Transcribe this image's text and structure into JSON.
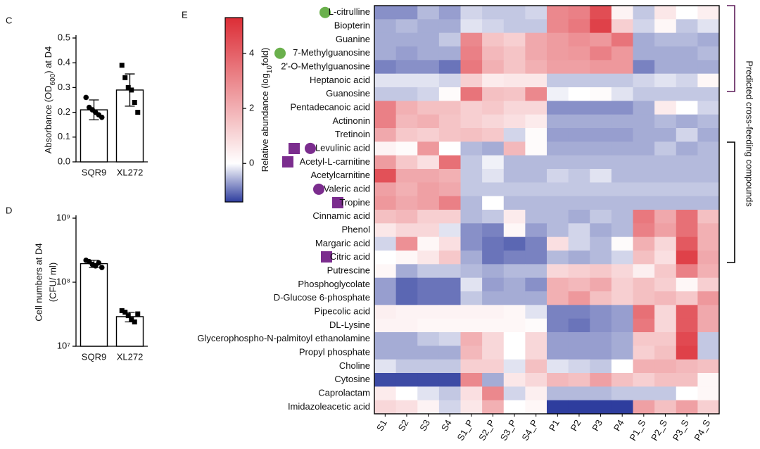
{
  "chart_data": [
    {
      "type": "bar",
      "panel": "C",
      "ylabel": [
        "Absorbance (OD",
        "600",
        ") at D4"
      ],
      "ylabel_sub": 1,
      "categories": [
        "SQR9",
        "XL272"
      ],
      "values": [
        0.21,
        0.29
      ],
      "errors": [
        0.04,
        0.065
      ],
      "points": [
        [
          0.26,
          0.22,
          0.21,
          0.2,
          0.19,
          0.18
        ],
        [
          0.39,
          0.34,
          0.3,
          0.29,
          0.24,
          0.2
        ]
      ],
      "markers": [
        "circle",
        "square"
      ],
      "color": "#ffffff",
      "ylim": [
        0,
        0.5
      ],
      "yticks": [
        {
          "value": 0,
          "label": "0.0"
        },
        0.1,
        0.2,
        0.3,
        0.4,
        0.5
      ],
      "log": false
    },
    {
      "type": "bar",
      "panel": "D",
      "ylabel_lines": [
        "Cell numbers at D4",
        "(CFU/ ml)"
      ],
      "categories": [
        "SQR9",
        "XL272"
      ],
      "values": [
        195000000,
        29000000
      ],
      "errors": [
        25000000,
        5000000
      ],
      "points": [
        [
          220000000,
          210000000,
          190000000,
          180000000,
          200000000,
          170000000
        ],
        [
          36000000,
          34000000,
          30000000,
          26000000,
          24000000,
          32000000
        ]
      ],
      "markers": [
        "circle",
        "square"
      ],
      "color": "#ffffff",
      "ylim": [
        10000000,
        1000000000
      ],
      "yticks": [
        {
          "value": 10000000,
          "label": "10⁷"
        },
        {
          "value": 100000000,
          "label": "10⁸"
        },
        {
          "value": 1000000000,
          "label": "10⁹"
        }
      ],
      "log": true
    },
    {
      "type": "heatmap",
      "panel": "E",
      "zlabel": [
        "Relative abundance (log",
        "10",
        "fold)"
      ],
      "zlabel_sub": 1,
      "annotation": "Predicted cross-feeding compounds",
      "zlim": [
        -1.4,
        5.3
      ],
      "zticks": [
        0,
        2,
        4
      ],
      "cmap": [
        "#2e3d9e",
        "#ffffff",
        "#dc2d36"
      ],
      "columns": [
        "S1",
        "S2",
        "S3",
        "S4",
        "S1_P",
        "S2_P",
        "S3_P",
        "S4_P",
        "P1",
        "P2",
        "P3",
        "P4",
        "P1_S",
        "P2_S",
        "P3_S",
        "P4_S"
      ],
      "rows": [
        "L-citrulline",
        "Biopterin",
        "Guanine",
        "7-Methylguanosine",
        "2'-O-Methylguanosine",
        "Heptanoic acid",
        "Guanosine",
        "Pentadecanoic acid",
        "Actinonin",
        "Tretinoin",
        "Levulinic acid",
        "Acetyl-L-carnitine",
        "Acetylcarnitine",
        "Valeric acid",
        "Tropine",
        "Cinnamic acid",
        "Phenol",
        "Margaric acid",
        "Citric acid",
        "Putrescine",
        "Phosphoglycolate",
        "D-Glucose 6-phosphate",
        "Pipecolic acid",
        "DL-Lysine",
        "Glycerophospho-N-palmitoyl ethanolamine",
        "Propyl phosphate",
        "Choline",
        "Cytosine",
        "Caprolactam",
        "Imidazoleacetic acid"
      ],
      "values": [
        [
          -0.8,
          -0.8,
          -0.5,
          -0.7,
          -0.3,
          -0.4,
          -0.4,
          -0.3,
          3,
          3.2,
          4.5,
          0.3,
          -0.4,
          0.6,
          0,
          0.4
        ],
        [
          -0.6,
          -0.5,
          -0.6,
          -0.6,
          -0.2,
          -0.3,
          -0.4,
          -0.4,
          3,
          3.4,
          4.8,
          1.2,
          -0.3,
          0.2,
          -0.4,
          -0.2
        ],
        [
          -0.6,
          -0.6,
          -0.6,
          -0.4,
          3,
          1.5,
          1.2,
          2.2,
          2.5,
          2.8,
          2.6,
          3.5,
          -0.6,
          -0.5,
          -0.5,
          -0.6
        ],
        [
          -0.6,
          -0.7,
          -0.6,
          -0.6,
          3.2,
          1.8,
          1.5,
          2.2,
          2.5,
          2.6,
          3.2,
          2.6,
          -0.6,
          -0.6,
          -0.6,
          -0.5
        ],
        [
          -0.9,
          -0.8,
          -0.8,
          -1,
          3.4,
          2,
          1.5,
          2,
          2.4,
          2.4,
          2.6,
          2.6,
          -0.9,
          -0.6,
          -0.6,
          -0.6
        ],
        [
          -0.2,
          -0.2,
          -0.2,
          -0.3,
          1.2,
          0.5,
          0.6,
          0.6,
          -0.4,
          -0.4,
          -0.4,
          -0.4,
          -0.3,
          -0.2,
          -0.3,
          0.2
        ],
        [
          -0.4,
          -0.4,
          -0.3,
          0.1,
          3.5,
          1.6,
          1.5,
          3,
          -0.1,
          0,
          0.1,
          -0.2,
          -0.4,
          -0.4,
          -0.4,
          -0.4
        ],
        [
          3.2,
          2,
          1.6,
          1.6,
          1.2,
          1.4,
          1,
          1,
          -0.8,
          -0.8,
          -0.8,
          -0.8,
          -0.6,
          0.5,
          0,
          -0.3
        ],
        [
          3.2,
          1.8,
          2,
          1.5,
          1.2,
          1,
          0.8,
          0.5,
          -0.6,
          -0.6,
          -0.6,
          -0.6,
          -0.6,
          -0.5,
          -0.6,
          -0.5
        ],
        [
          2.2,
          1.4,
          1.2,
          1.5,
          1.6,
          1.4,
          -0.3,
          0.1,
          -0.7,
          -0.7,
          -0.7,
          -0.7,
          -0.6,
          -0.6,
          -0.3,
          -0.6
        ],
        [
          0.3,
          0.1,
          2.6,
          0,
          -0.5,
          -0.6,
          1.8,
          0.1,
          -0.6,
          -0.6,
          -0.6,
          -0.6,
          -0.6,
          -0.4,
          -0.6,
          -0.5
        ],
        [
          2.5,
          1.4,
          0.8,
          3.6,
          -0.4,
          -0.1,
          -0.5,
          -0.5,
          -0.5,
          -0.5,
          -0.5,
          -0.5,
          -0.5,
          -0.5,
          -0.5,
          -0.5
        ],
        [
          4.4,
          2.2,
          2.2,
          2,
          -0.4,
          -0.2,
          -0.5,
          -0.5,
          -0.3,
          -0.4,
          -0.2,
          -0.5,
          -0.5,
          -0.5,
          -0.5,
          -0.5
        ],
        [
          2.4,
          2,
          2.4,
          2.2,
          -0.4,
          -0.4,
          -0.4,
          -0.4,
          -0.4,
          -0.4,
          -0.4,
          -0.4,
          -0.4,
          -0.4,
          -0.4,
          -0.4
        ],
        [
          2.6,
          2.2,
          2.4,
          3.2,
          -0.5,
          0,
          -0.5,
          -0.5,
          -0.5,
          -0.5,
          -0.5,
          -0.5,
          -0.5,
          -0.5,
          -0.5,
          -0.5
        ],
        [
          1.6,
          1.8,
          1.2,
          1.2,
          -0.5,
          -0.4,
          0.5,
          -0.5,
          -0.5,
          -0.6,
          -0.4,
          -0.5,
          3.4,
          2.2,
          3.6,
          1.6
        ],
        [
          0.6,
          1,
          1,
          -0.2,
          -0.8,
          -0.9,
          0.2,
          -0.7,
          -0.5,
          -0.3,
          -0.6,
          -0.5,
          3.2,
          2.4,
          3.6,
          2
        ],
        [
          -0.3,
          2.8,
          0.2,
          0.8,
          -0.8,
          -1,
          -1.1,
          -0.9,
          0.8,
          -0.3,
          -0.5,
          0.1,
          2,
          1,
          4.2,
          2
        ],
        [
          0,
          0.2,
          0.6,
          1.4,
          -0.6,
          -1,
          -0.9,
          -0.9,
          -0.5,
          -0.6,
          -0.5,
          -0.3,
          1.6,
          0.8,
          4.8,
          2.2
        ],
        [
          0.2,
          -0.6,
          -0.4,
          -0.4,
          -0.5,
          -0.6,
          -0.5,
          -0.5,
          1,
          1.2,
          1.4,
          1,
          0.4,
          1.4,
          3.2,
          2
        ],
        [
          -0.7,
          -1.1,
          -1,
          -1,
          -0.2,
          -0.7,
          -0.6,
          -0.8,
          2,
          1.8,
          2.2,
          1.2,
          1.6,
          1.2,
          0.2,
          1.2
        ],
        [
          -0.7,
          -1.1,
          -1,
          -1,
          -0.4,
          -0.6,
          -0.6,
          -0.6,
          2,
          2.6,
          1.6,
          1.2,
          1.6,
          1.8,
          1.4,
          2.6
        ],
        [
          0.4,
          0.3,
          0.3,
          0.3,
          0.3,
          0.3,
          0.2,
          -0.2,
          -0.9,
          -0.9,
          -0.8,
          -0.7,
          3.6,
          1,
          4.2,
          2.2
        ],
        [
          0.3,
          0.3,
          0.2,
          0.2,
          0.2,
          0.2,
          0.2,
          0.1,
          -0.9,
          -1,
          -0.8,
          -0.7,
          3.4,
          1,
          4.2,
          2.2
        ],
        [
          -0.6,
          -0.6,
          -0.4,
          -0.3,
          2,
          1,
          0,
          1,
          -0.7,
          -0.7,
          -0.7,
          -0.6,
          1.4,
          1.4,
          4.6,
          -0.4
        ],
        [
          -0.6,
          -0.6,
          -0.6,
          -0.6,
          1.8,
          1,
          0,
          1,
          -0.7,
          -0.7,
          -0.7,
          -0.6,
          1.2,
          1.6,
          4.8,
          -0.4
        ],
        [
          -0.2,
          -0.4,
          -0.4,
          -0.4,
          1.2,
          1.2,
          -0.2,
          1.6,
          -0.2,
          -0.3,
          -0.4,
          0,
          2,
          2,
          1.8,
          1.6
        ],
        [
          -1.3,
          -1.3,
          -1.3,
          -1.3,
          3,
          -0.6,
          0.6,
          1,
          1.8,
          1.6,
          2.4,
          1.6,
          1.2,
          1.6,
          1.6,
          0.2
        ],
        [
          0.5,
          0,
          -0.2,
          -0.4,
          0.8,
          3,
          -0.3,
          0.4,
          -0.5,
          -0.5,
          -0.5,
          -0.4,
          -0.4,
          -0.4,
          0,
          0.2
        ],
        [
          1,
          0.8,
          0.3,
          -0.3,
          0.6,
          2,
          0,
          0.2,
          -1.4,
          -1.4,
          -1.4,
          -1.4,
          2.4,
          1.6,
          2.4,
          1.2
        ]
      ]
    }
  ]
}
